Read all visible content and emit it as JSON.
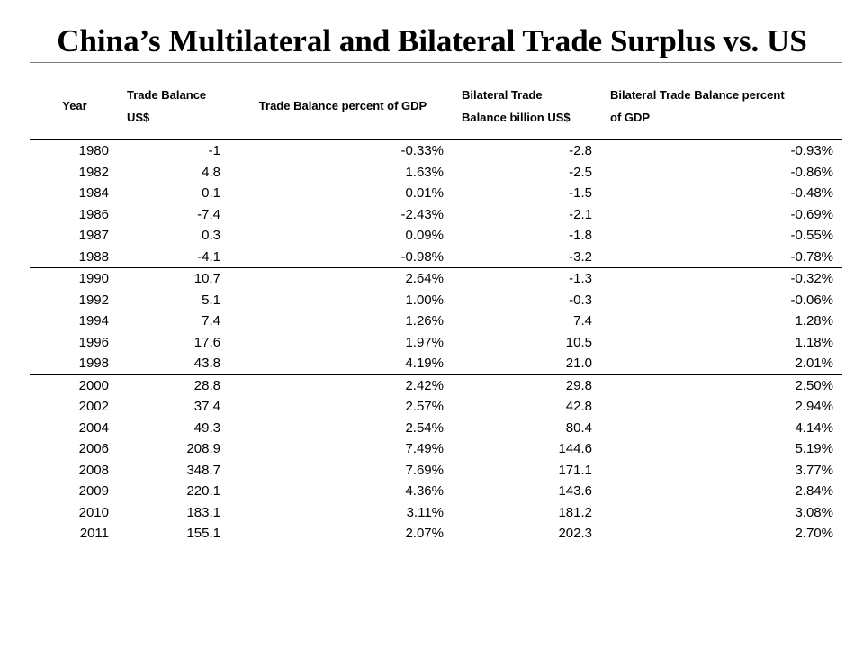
{
  "title": "China’s Multilateral and Bilateral Trade Surplus vs. US",
  "headers": {
    "year": "Year",
    "trade_balance": [
      "Trade Balance",
      "US$"
    ],
    "trade_balance_pct": "Trade Balance percent of GDP",
    "bilateral": [
      "Bilateral Trade",
      "Balance billion US$"
    ],
    "bilateral_pct": [
      "Bilateral Trade Balance percent",
      "of GDP"
    ]
  },
  "rows": [
    {
      "year": "1980",
      "tb": "-1",
      "tb_pct": "-0.33%",
      "bi": "-2.8",
      "bi_pct": "-0.93%"
    },
    {
      "year": "1982",
      "tb": "4.8",
      "tb_pct": "1.63%",
      "bi": "-2.5",
      "bi_pct": "-0.86%"
    },
    {
      "year": "1984",
      "tb": "0.1",
      "tb_pct": "0.01%",
      "bi": "-1.5",
      "bi_pct": "-0.48%"
    },
    {
      "year": "1986",
      "tb": "-7.4",
      "tb_pct": "-2.43%",
      "bi": "-2.1",
      "bi_pct": "-0.69%"
    },
    {
      "year": "1987",
      "tb": "0.3",
      "tb_pct": "0.09%",
      "bi": "-1.8",
      "bi_pct": "-0.55%"
    },
    {
      "year": "1988",
      "tb": "-4.1",
      "tb_pct": "-0.98%",
      "bi": "-3.2",
      "bi_pct": "-0.78%"
    },
    {
      "year": "1990",
      "tb": "10.7",
      "tb_pct": "2.64%",
      "bi": "-1.3",
      "bi_pct": "-0.32%"
    },
    {
      "year": "1992",
      "tb": "5.1",
      "tb_pct": "1.00%",
      "bi": "-0.3",
      "bi_pct": "-0.06%"
    },
    {
      "year": "1994",
      "tb": "7.4",
      "tb_pct": "1.26%",
      "bi": "7.4",
      "bi_pct": "1.28%"
    },
    {
      "year": "1996",
      "tb": "17.6",
      "tb_pct": "1.97%",
      "bi": "10.5",
      "bi_pct": "1.18%"
    },
    {
      "year": "1998",
      "tb": "43.8",
      "tb_pct": "4.19%",
      "bi": "21.0",
      "bi_pct": "2.01%"
    },
    {
      "year": "2000",
      "tb": "28.8",
      "tb_pct": "2.42%",
      "bi": "29.8",
      "bi_pct": "2.50%"
    },
    {
      "year": "2002",
      "tb": "37.4",
      "tb_pct": "2.57%",
      "bi": "42.8",
      "bi_pct": "2.94%"
    },
    {
      "year": "2004",
      "tb": "49.3",
      "tb_pct": "2.54%",
      "bi": "80.4",
      "bi_pct": "4.14%"
    },
    {
      "year": "2006",
      "tb": "208.9",
      "tb_pct": "7.49%",
      "bi": "144.6",
      "bi_pct": "5.19%"
    },
    {
      "year": "2008",
      "tb": "348.7",
      "tb_pct": "7.69%",
      "bi": "171.1",
      "bi_pct": "3.77%"
    },
    {
      "year": "2009",
      "tb": "220.1",
      "tb_pct": "4.36%",
      "bi": "143.6",
      "bi_pct": "2.84%"
    },
    {
      "year": "2010",
      "tb": "183.1",
      "tb_pct": "3.11%",
      "bi": "181.2",
      "bi_pct": "3.08%"
    },
    {
      "year": "2011",
      "tb": "155.1",
      "tb_pct": "2.07%",
      "bi": "202.3",
      "bi_pct": "2.70%"
    }
  ]
}
